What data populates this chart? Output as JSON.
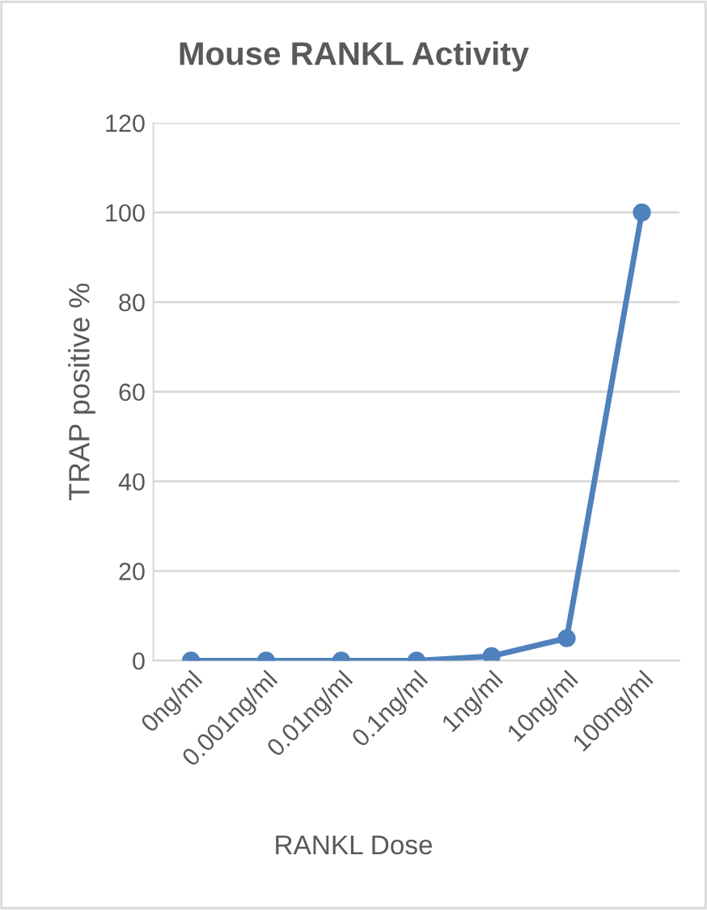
{
  "chart_data": {
    "type": "line",
    "title": "Mouse RANKL Activity",
    "xlabel": "RANKL Dose",
    "ylabel": "TRAP positive %",
    "categories": [
      "0ng/ml",
      "0.001ng/ml",
      "0.01ng/ml",
      "0.1ng/ml",
      "1ng/ml",
      "10ng/ml",
      "100ng/ml"
    ],
    "series": [
      {
        "color": "#4f81bd",
        "values": [
          0,
          0,
          0,
          0,
          1,
          5,
          100
        ]
      }
    ],
    "ylim": [
      0,
      120
    ],
    "yticks": [
      0,
      20,
      40,
      60,
      80,
      100,
      120
    ],
    "grid": "y",
    "marker": "circle",
    "line_style": "solid"
  }
}
